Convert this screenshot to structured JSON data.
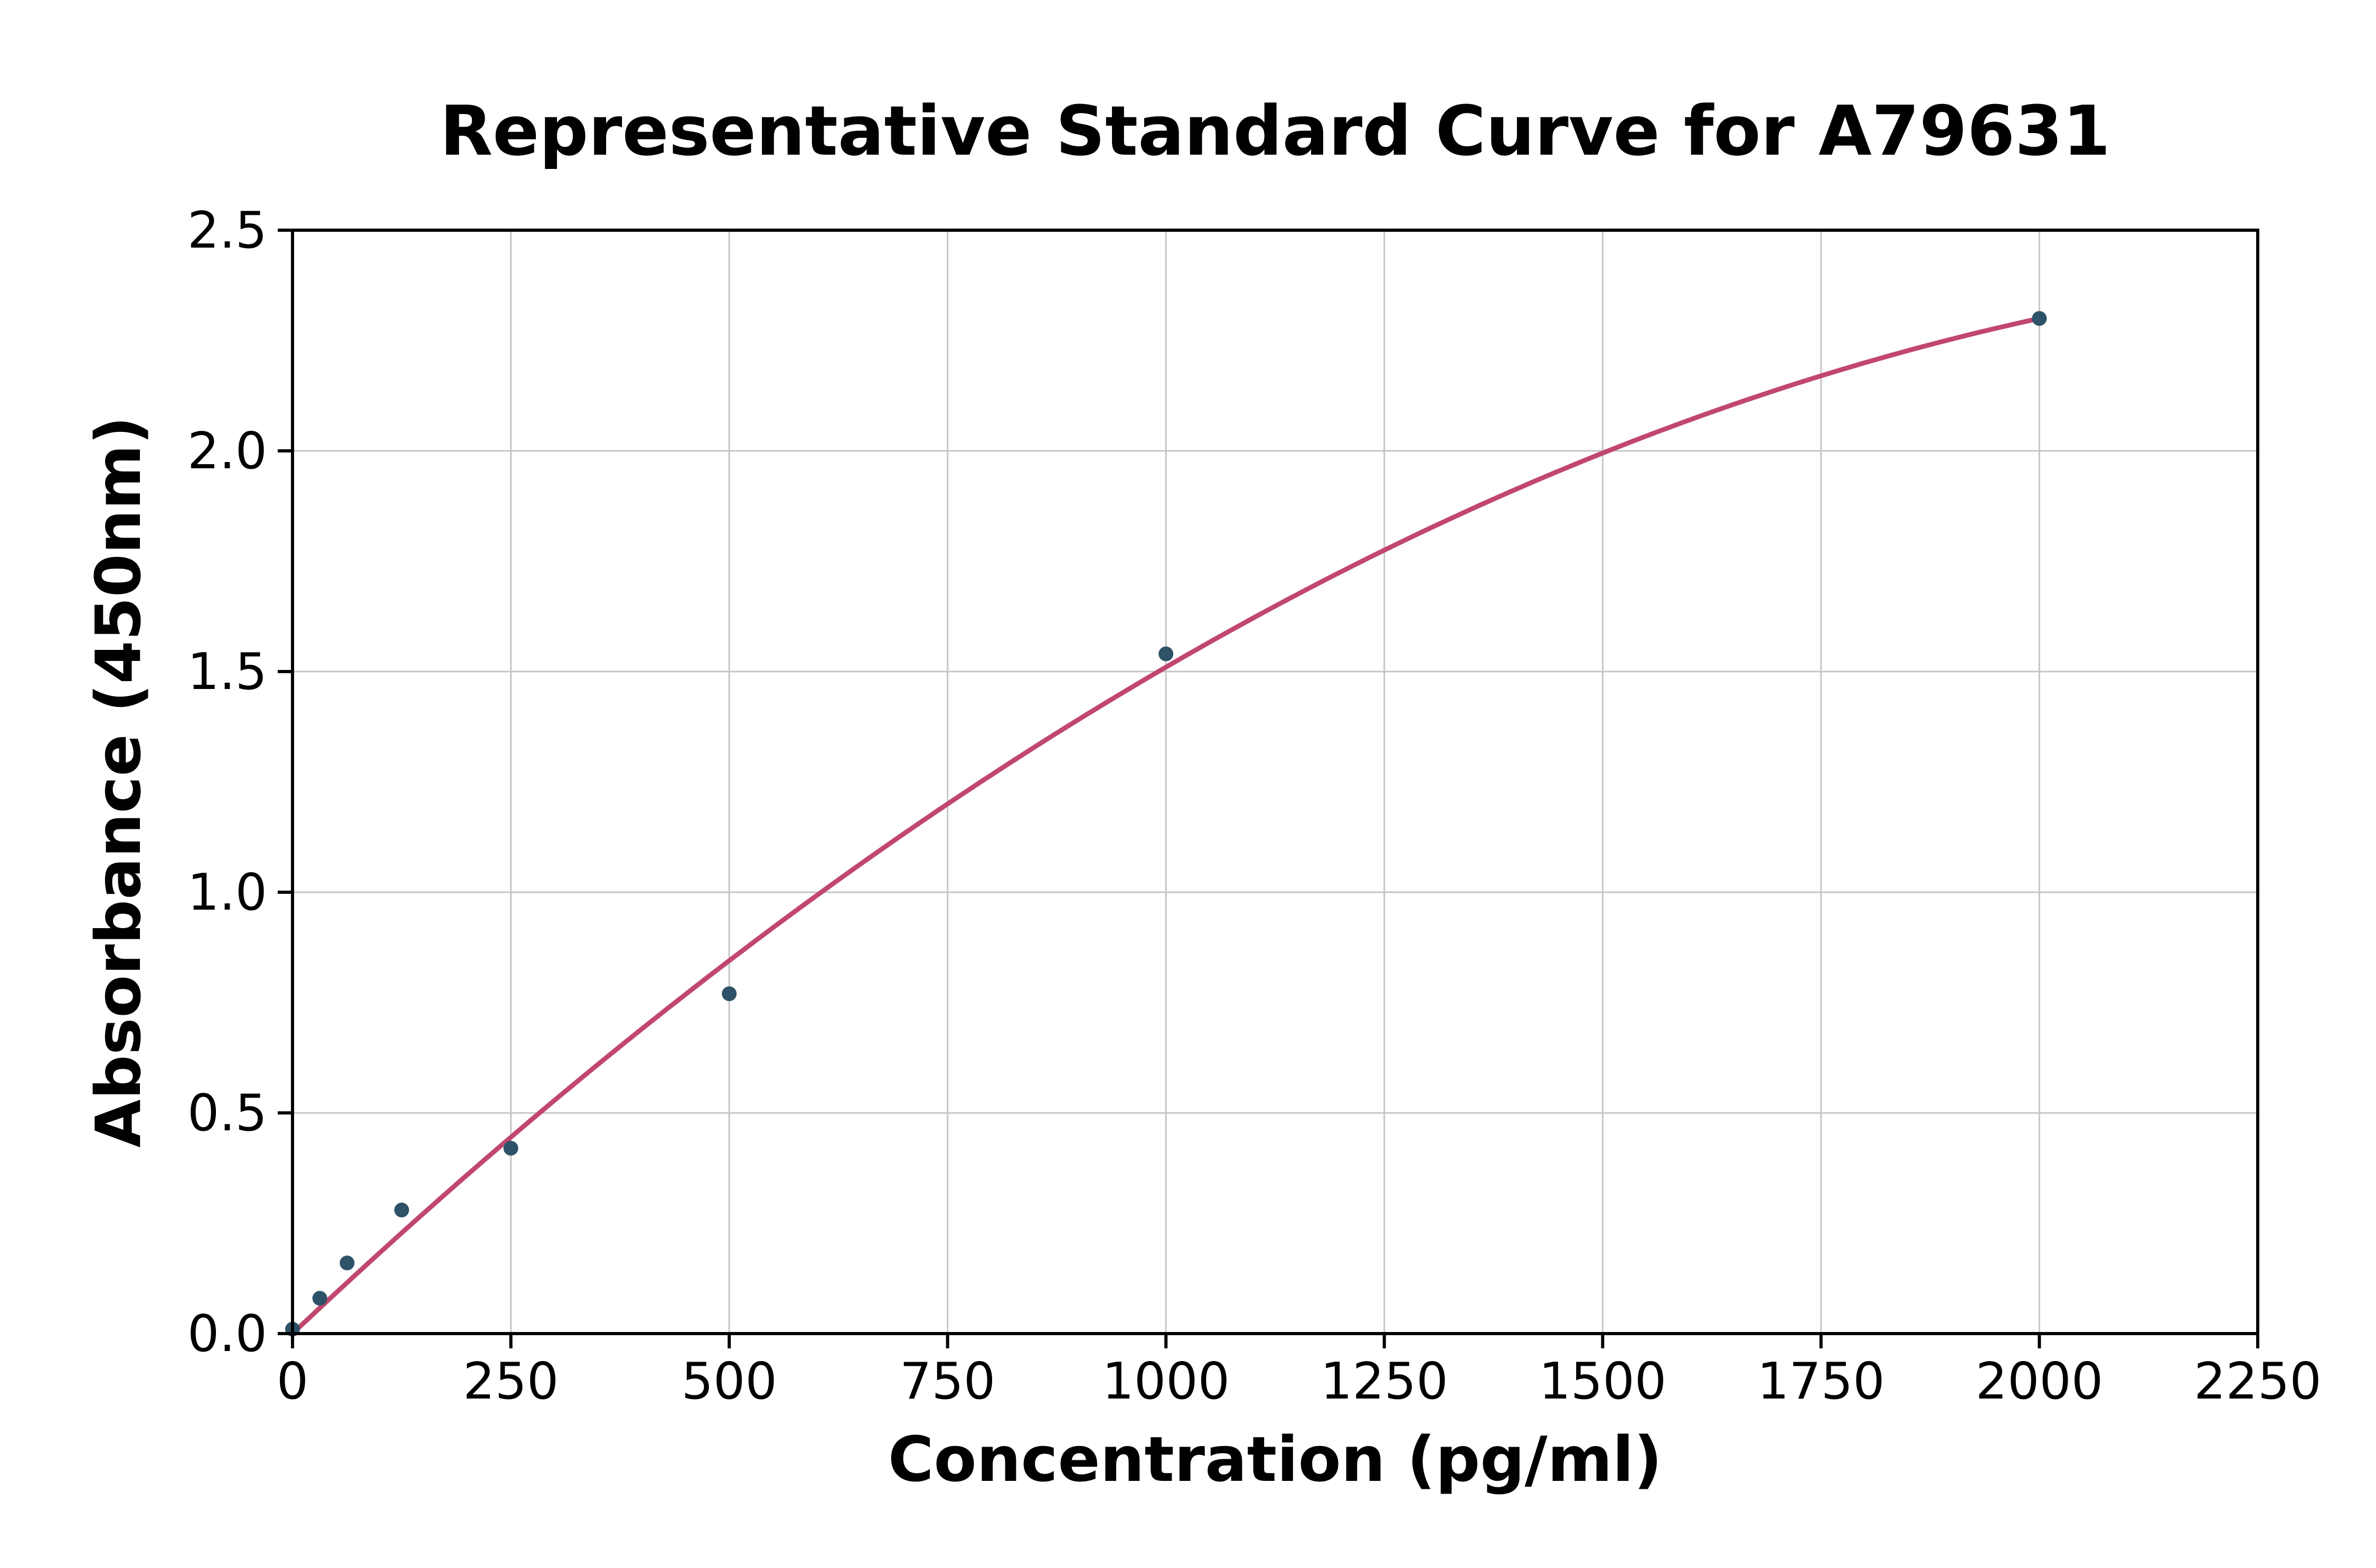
{
  "chart_data": {
    "type": "scatter",
    "title": "Representative Standard Curve for A79631",
    "xlabel": "Concentration (pg/ml)",
    "ylabel": "Absorbance (450nm)",
    "xlim": [
      0,
      2250
    ],
    "ylim": [
      0,
      2.5
    ],
    "xticks": [
      0,
      250,
      500,
      750,
      1000,
      1250,
      1500,
      1750,
      2000,
      2250
    ],
    "xtick_labels": [
      "0",
      "250",
      "500",
      "750",
      "1000",
      "1250",
      "1500",
      "1750",
      "2000",
      "2250"
    ],
    "yticks": [
      0,
      0.5,
      1.0,
      1.5,
      2.0,
      2.5
    ],
    "ytick_labels": [
      "0.0",
      "0.5",
      "1.0",
      "1.5",
      "2.0",
      "2.5"
    ],
    "grid": true,
    "grid_color": "#c6c6c6",
    "point_color": "#2e5268",
    "curve_color": "#c1476f",
    "points": [
      [
        0,
        0.01
      ],
      [
        31.25,
        0.08
      ],
      [
        62.5,
        0.16
      ],
      [
        125,
        0.28
      ],
      [
        250,
        0.42
      ],
      [
        500,
        0.77
      ],
      [
        1000,
        1.54
      ],
      [
        2000,
        2.3
      ]
    ],
    "fit": {
      "type": "quadratic",
      "coefficients": [
        0,
        0.00187,
        -3.6e-07
      ],
      "x_range": [
        0,
        2000
      ]
    },
    "legend": null
  }
}
